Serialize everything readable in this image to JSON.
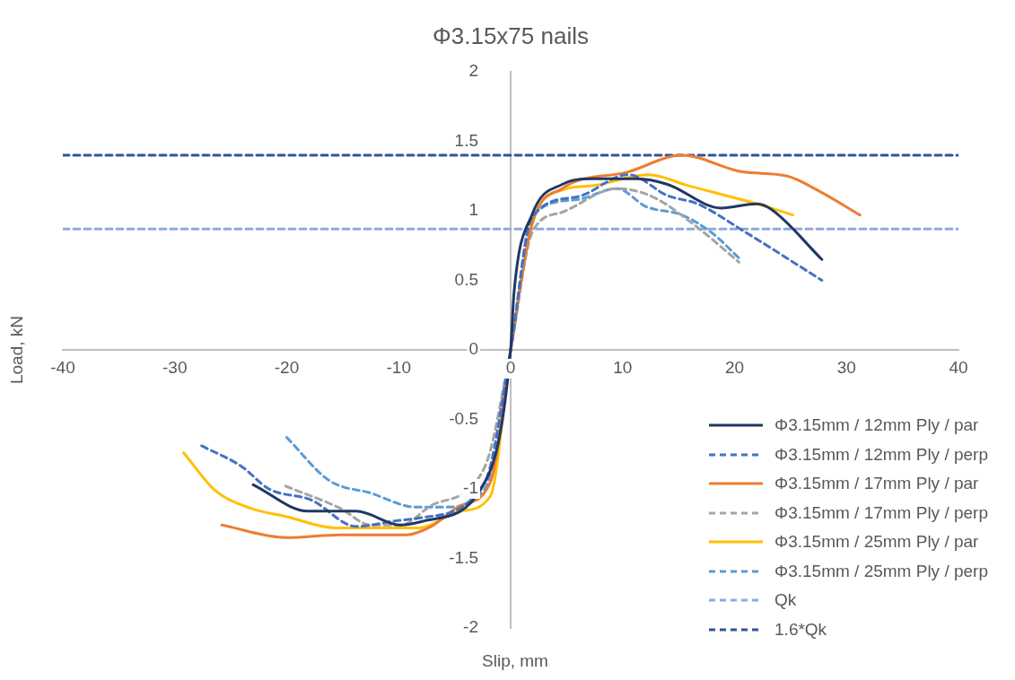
{
  "chart_data": {
    "type": "line",
    "title": "Φ3.15x75 nails",
    "xlabel": "Slip, mm",
    "ylabel": "Load, kN",
    "xlim": [
      -40,
      40
    ],
    "xticks": [
      -40,
      -30,
      -20,
      -10,
      0,
      10,
      20,
      30,
      40
    ],
    "ylim": [
      -2,
      2
    ],
    "yticks": [
      -2,
      -1.5,
      -1,
      -0.5,
      0,
      0.5,
      1,
      1.5,
      2
    ],
    "grid": false,
    "legend": "bottom right",
    "marker": "none",
    "series": [
      {
        "name": "Φ3.15mm / 12mm Ply / par",
        "color": "#203864",
        "line_style": "solid",
        "x": [
          -23.0,
          -18.1,
          -13.8,
          -9.8,
          -7.7,
          -2.5,
          0,
          0.3,
          1.9,
          4.6,
          7.3,
          11.3,
          14,
          18.8,
          22,
          23.3,
          27.8
        ],
        "values": [
          -0.97,
          -1.16,
          -1.16,
          -1.26,
          -1.23,
          -0.98,
          0,
          0.41,
          0.97,
          1.19,
          1.23,
          1.23,
          1.19,
          1.02,
          1.05,
          1.01,
          0.65
        ]
      },
      {
        "name": "Φ3.15mm / 12mm Ply / perp",
        "color": "#4472c4",
        "line_style": "dashed",
        "x": [
          -27.6,
          -24,
          -21.6,
          -17.8,
          -13.8,
          -10.3,
          -8.2,
          -2.3,
          0,
          1.9,
          5.9,
          10.5,
          14,
          16.7,
          20.7,
          27.8
        ],
        "values": [
          -0.69,
          -0.84,
          -1.0,
          -1.08,
          -1.27,
          -1.23,
          -1.21,
          -0.95,
          0,
          0.95,
          1.1,
          1.26,
          1.11,
          1.05,
          0.86,
          0.5
        ]
      },
      {
        "name": "Φ3.15mm / 17mm Ply / par",
        "color": "#ed7d31",
        "line_style": "solid",
        "x": [
          -25.8,
          -20,
          -15.2,
          -9.3,
          -7.1,
          -4.5,
          -1.8,
          0,
          1.9,
          4.6,
          10.5,
          15.3,
          20.7,
          24.7,
          27.6,
          31.2
        ],
        "values": [
          -1.26,
          -1.35,
          -1.33,
          -1.33,
          -1.27,
          -1.12,
          -0.95,
          0,
          0.9,
          1.16,
          1.28,
          1.4,
          1.28,
          1.25,
          1.14,
          0.97
        ]
      },
      {
        "name": "Φ3.15mm / 17mm Ply / perp",
        "color": "#a5a5a5",
        "line_style": "dashed",
        "x": [
          -20.1,
          -15.2,
          -12.5,
          -9.8,
          -7.1,
          -2.3,
          0,
          1.9,
          4.6,
          9.5,
          12.7,
          16.7,
          20.4
        ],
        "values": [
          -0.98,
          -1.14,
          -1.26,
          -1.26,
          -1.12,
          -0.84,
          0,
          0.84,
          0.99,
          1.16,
          1.1,
          0.88,
          0.63
        ]
      },
      {
        "name": "Φ3.15mm / 25mm Ply / par",
        "color": "#ffc000",
        "line_style": "solid",
        "x": [
          -29.2,
          -26.4,
          -23.2,
          -20,
          -15.7,
          -11.1,
          -8.2,
          -4.5,
          -1.8,
          0,
          1.9,
          4.6,
          7.3,
          12.3,
          15.9,
          22,
          25.2
        ],
        "values": [
          -0.74,
          -1.01,
          -1.14,
          -1.2,
          -1.28,
          -1.28,
          -1.28,
          -1.16,
          -1.05,
          0,
          0.9,
          1.15,
          1.18,
          1.26,
          1.18,
          1.05,
          0.97
        ]
      },
      {
        "name": "Φ3.15mm / 25mm Ply / perp",
        "color": "#5b9bd5",
        "line_style": "dashed",
        "x": [
          -20,
          -16.2,
          -12.5,
          -8.5,
          -5.8,
          -2.3,
          0,
          1.9,
          5.9,
          9.5,
          12.1,
          15.3,
          18,
          20.4
        ],
        "values": [
          -0.63,
          -0.94,
          -1.03,
          -1.13,
          -1.13,
          -1.0,
          0,
          0.96,
          1.08,
          1.16,
          1.03,
          0.97,
          0.84,
          0.66
        ]
      },
      {
        "name": "Qk",
        "color": "#8faadc",
        "line_style": "dashed",
        "x": [
          -40,
          40
        ],
        "values": [
          0.87,
          0.87
        ]
      },
      {
        "name": "1.6*Qk",
        "color": "#2f5597",
        "line_style": "dashed",
        "x": [
          -40,
          40
        ],
        "values": [
          1.4,
          1.4
        ]
      }
    ]
  }
}
